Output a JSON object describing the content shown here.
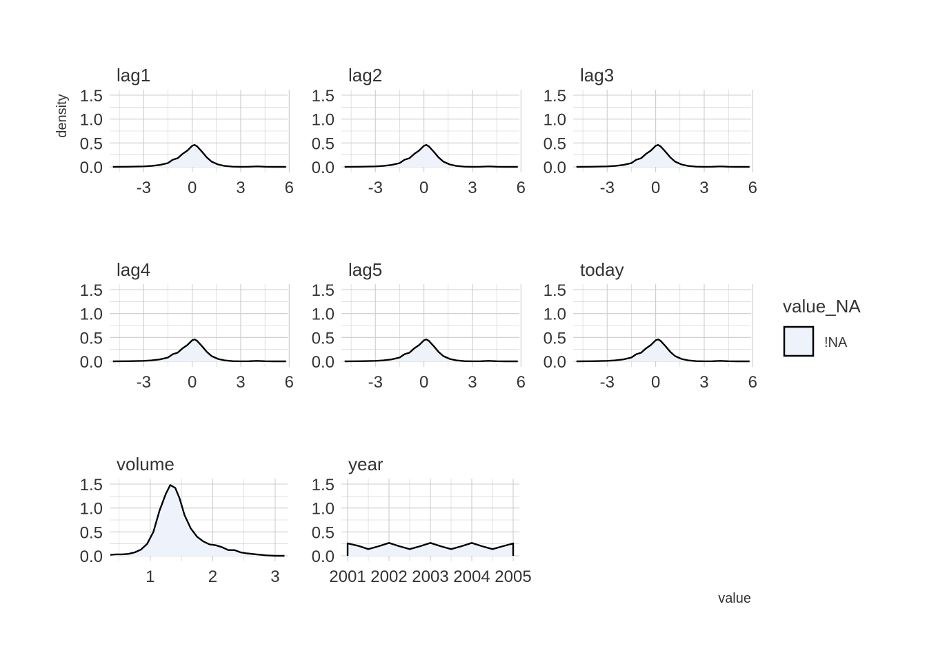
{
  "figure": {
    "xlabel": "value",
    "ylabel": "density",
    "legend": {
      "title": "value_NA",
      "entries": [
        "!NA"
      ],
      "placement": "right"
    },
    "colors": {
      "fill": "#eef3fb",
      "line": "#000000",
      "grid": "#cccccc",
      "text": "#333333"
    }
  },
  "chart_data": [
    {
      "type": "area",
      "title": "lag1",
      "xlim": [
        -5.1,
        5.9
      ],
      "ylim": [
        0,
        1.5
      ],
      "xticks": [
        -3,
        0,
        3,
        6
      ],
      "xtick_labels": [
        "-3",
        "0",
        "3",
        "6"
      ],
      "yticks": [
        0,
        0.5,
        1,
        1.5
      ],
      "ytick_labels": [
        "0.0",
        "0.5",
        "1.0",
        "1.5"
      ],
      "x": [
        -4.9,
        -4,
        -3,
        -2.5,
        -2,
        -1.5,
        -1.2,
        -0.9,
        -0.6,
        -0.3,
        0,
        0.15,
        0.3,
        0.6,
        0.9,
        1.2,
        1.6,
        2,
        2.5,
        3,
        3.5,
        4,
        4.5,
        5,
        5.8
      ],
      "y": [
        0,
        0.003,
        0.01,
        0.02,
        0.04,
        0.08,
        0.15,
        0.18,
        0.27,
        0.34,
        0.44,
        0.46,
        0.43,
        0.32,
        0.2,
        0.11,
        0.05,
        0.02,
        0.005,
        0.002,
        0.003,
        0.01,
        0.003,
        0,
        0
      ]
    },
    {
      "type": "area",
      "title": "lag2",
      "xlim": [
        -5.1,
        5.9
      ],
      "ylim": [
        0,
        1.5
      ],
      "xticks": [
        -3,
        0,
        3,
        6
      ],
      "xtick_labels": [
        "-3",
        "0",
        "3",
        "6"
      ],
      "yticks": [
        0,
        0.5,
        1,
        1.5
      ],
      "ytick_labels": [
        "0.0",
        "0.5",
        "1.0",
        "1.5"
      ],
      "x": [
        -4.9,
        -4,
        -3,
        -2.5,
        -2,
        -1.5,
        -1.2,
        -0.9,
        -0.6,
        -0.3,
        0,
        0.15,
        0.3,
        0.6,
        0.9,
        1.2,
        1.6,
        2,
        2.5,
        3,
        3.5,
        4,
        4.5,
        5,
        5.8
      ],
      "y": [
        0,
        0.003,
        0.01,
        0.02,
        0.04,
        0.08,
        0.15,
        0.18,
        0.27,
        0.34,
        0.44,
        0.46,
        0.43,
        0.32,
        0.2,
        0.11,
        0.05,
        0.02,
        0.005,
        0.002,
        0.003,
        0.01,
        0.003,
        0,
        0
      ]
    },
    {
      "type": "area",
      "title": "lag3",
      "xlim": [
        -5.1,
        5.9
      ],
      "ylim": [
        0,
        1.5
      ],
      "xticks": [
        -3,
        0,
        3,
        6
      ],
      "xtick_labels": [
        "-3",
        "0",
        "3",
        "6"
      ],
      "yticks": [
        0,
        0.5,
        1,
        1.5
      ],
      "ytick_labels": [
        "0.0",
        "0.5",
        "1.0",
        "1.5"
      ],
      "x": [
        -4.9,
        -4,
        -3,
        -2.5,
        -2,
        -1.5,
        -1.2,
        -0.9,
        -0.6,
        -0.3,
        0,
        0.15,
        0.3,
        0.6,
        0.9,
        1.2,
        1.6,
        2,
        2.5,
        3,
        3.5,
        4,
        4.5,
        5,
        5.8
      ],
      "y": [
        0,
        0.003,
        0.01,
        0.02,
        0.04,
        0.08,
        0.15,
        0.18,
        0.27,
        0.34,
        0.44,
        0.46,
        0.43,
        0.32,
        0.2,
        0.11,
        0.05,
        0.02,
        0.005,
        0.002,
        0.003,
        0.01,
        0.003,
        0,
        0
      ]
    },
    {
      "type": "area",
      "title": "lag4",
      "xlim": [
        -5.1,
        5.9
      ],
      "ylim": [
        0,
        1.5
      ],
      "xticks": [
        -3,
        0,
        3,
        6
      ],
      "xtick_labels": [
        "-3",
        "0",
        "3",
        "6"
      ],
      "yticks": [
        0,
        0.5,
        1,
        1.5
      ],
      "ytick_labels": [
        "0.0",
        "0.5",
        "1.0",
        "1.5"
      ],
      "x": [
        -4.9,
        -4,
        -3,
        -2.5,
        -2,
        -1.5,
        -1.2,
        -0.9,
        -0.6,
        -0.3,
        0,
        0.15,
        0.3,
        0.6,
        0.9,
        1.2,
        1.6,
        2,
        2.5,
        3,
        3.5,
        4,
        4.5,
        5,
        5.8
      ],
      "y": [
        0,
        0.003,
        0.01,
        0.02,
        0.04,
        0.08,
        0.15,
        0.18,
        0.27,
        0.34,
        0.44,
        0.46,
        0.43,
        0.32,
        0.2,
        0.11,
        0.05,
        0.02,
        0.005,
        0.002,
        0.003,
        0.01,
        0.003,
        0,
        0
      ]
    },
    {
      "type": "area",
      "title": "lag5",
      "xlim": [
        -5.1,
        5.9
      ],
      "ylim": [
        0,
        1.5
      ],
      "xticks": [
        -3,
        0,
        3,
        6
      ],
      "xtick_labels": [
        "-3",
        "0",
        "3",
        "6"
      ],
      "yticks": [
        0,
        0.5,
        1,
        1.5
      ],
      "ytick_labels": [
        "0.0",
        "0.5",
        "1.0",
        "1.5"
      ],
      "x": [
        -4.9,
        -4,
        -3,
        -2.5,
        -2,
        -1.5,
        -1.2,
        -0.9,
        -0.6,
        -0.3,
        0,
        0.15,
        0.3,
        0.6,
        0.9,
        1.2,
        1.6,
        2,
        2.5,
        3,
        3.5,
        4,
        4.5,
        5,
        5.8
      ],
      "y": [
        0,
        0.003,
        0.01,
        0.02,
        0.04,
        0.08,
        0.15,
        0.18,
        0.27,
        0.34,
        0.44,
        0.46,
        0.43,
        0.32,
        0.2,
        0.11,
        0.05,
        0.02,
        0.005,
        0.002,
        0.003,
        0.01,
        0.003,
        0,
        0
      ]
    },
    {
      "type": "area",
      "title": "today",
      "xlim": [
        -5.1,
        5.9
      ],
      "ylim": [
        0,
        1.5
      ],
      "xticks": [
        -3,
        0,
        3,
        6
      ],
      "xtick_labels": [
        "-3",
        "0",
        "3",
        "6"
      ],
      "yticks": [
        0,
        0.5,
        1,
        1.5
      ],
      "ytick_labels": [
        "0.0",
        "0.5",
        "1.0",
        "1.5"
      ],
      "x": [
        -4.9,
        -4,
        -3,
        -2.5,
        -2,
        -1.5,
        -1.2,
        -0.9,
        -0.6,
        -0.3,
        0,
        0.15,
        0.3,
        0.6,
        0.9,
        1.2,
        1.6,
        2,
        2.5,
        3,
        3.5,
        4,
        4.5,
        5,
        5.8
      ],
      "y": [
        0,
        0.003,
        0.01,
        0.02,
        0.04,
        0.08,
        0.15,
        0.18,
        0.27,
        0.34,
        0.44,
        0.46,
        0.43,
        0.32,
        0.2,
        0.11,
        0.05,
        0.02,
        0.005,
        0.002,
        0.003,
        0.01,
        0.003,
        0,
        0
      ]
    },
    {
      "type": "area",
      "title": "volume",
      "xlim": [
        0.35,
        3.2
      ],
      "ylim": [
        0,
        1.5
      ],
      "xticks": [
        1,
        2,
        3
      ],
      "xtick_labels": [
        "1",
        "2",
        "3"
      ],
      "yticks": [
        0,
        0.5,
        1,
        1.5
      ],
      "ytick_labels": [
        "0.0",
        "0.5",
        "1.0",
        "1.5"
      ],
      "x": [
        0.36,
        0.45,
        0.55,
        0.65,
        0.75,
        0.85,
        0.95,
        1.05,
        1.15,
        1.25,
        1.32,
        1.4,
        1.47,
        1.55,
        1.65,
        1.75,
        1.85,
        1.95,
        2.05,
        2.15,
        2.25,
        2.35,
        2.45,
        2.55,
        2.7,
        2.85,
        3.0,
        3.15
      ],
      "y": [
        0.02,
        0.03,
        0.03,
        0.04,
        0.07,
        0.13,
        0.25,
        0.5,
        0.95,
        1.3,
        1.48,
        1.42,
        1.2,
        0.85,
        0.57,
        0.4,
        0.3,
        0.24,
        0.22,
        0.18,
        0.12,
        0.12,
        0.07,
        0.05,
        0.03,
        0.01,
        0,
        0
      ]
    },
    {
      "type": "area",
      "title": "year",
      "xlim": [
        2000.85,
        2005.15
      ],
      "ylim": [
        0,
        1.5
      ],
      "xticks": [
        2001,
        2002,
        2003,
        2004,
        2005
      ],
      "xtick_labels": [
        "2001",
        "2002",
        "2003",
        "2004",
        "2005"
      ],
      "yticks": [
        0,
        0.5,
        1,
        1.5
      ],
      "ytick_labels": [
        "0.0",
        "0.5",
        "1.0",
        "1.5"
      ],
      "x": [
        2001,
        2001,
        2001.25,
        2001.5,
        2001.75,
        2002,
        2002.25,
        2002.5,
        2002.75,
        2003,
        2003.25,
        2003.5,
        2003.75,
        2004,
        2004.25,
        2004.5,
        2004.75,
        2005,
        2005
      ],
      "y": [
        0,
        0.26,
        0.21,
        0.14,
        0.2,
        0.27,
        0.2,
        0.14,
        0.2,
        0.27,
        0.2,
        0.14,
        0.2,
        0.27,
        0.2,
        0.14,
        0.2,
        0.26,
        0
      ]
    }
  ]
}
